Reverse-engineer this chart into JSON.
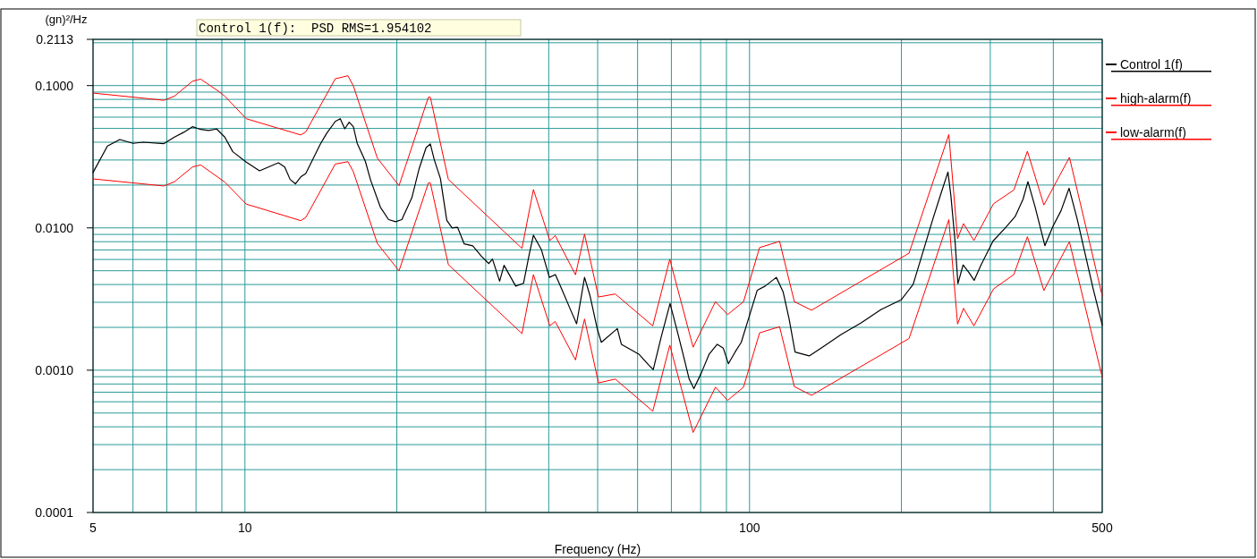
{
  "chart_data": {
    "type": "line",
    "xlabel": "Frequency (Hz)",
    "ylabel": "(gn)²/Hz",
    "annotations": [
      "Control 1(f):  PSD RMS=1.954102"
    ],
    "log": "xy",
    "grid": true,
    "legend": "right",
    "xlim": [
      5,
      500
    ],
    "ylim": [
      0.0001,
      0.2113
    ],
    "xticks": [
      5,
      {
        "value": 6,
        "label": null
      },
      {
        "value": 7,
        "label": null
      },
      {
        "value": 8,
        "label": null
      },
      {
        "value": 9,
        "label": null
      },
      10,
      {
        "value": 20,
        "label": null
      },
      {
        "value": 30,
        "label": null
      },
      {
        "value": 40,
        "label": null
      },
      {
        "value": 50,
        "label": null
      },
      {
        "value": 60,
        "label": null
      },
      {
        "value": 70,
        "label": null
      },
      {
        "value": 80,
        "label": null
      },
      {
        "value": 90,
        "label": null
      },
      100,
      {
        "value": 200,
        "label": null
      },
      {
        "value": 300,
        "label": null
      },
      {
        "value": 400,
        "label": null
      },
      500
    ],
    "yticks": [
      {
        "value": 0.0001,
        "label": "0.0001"
      },
      {
        "value": 0.0002,
        "label": null
      },
      {
        "value": 0.0003,
        "label": null
      },
      {
        "value": 0.0004,
        "label": null
      },
      {
        "value": 0.0005,
        "label": null
      },
      {
        "value": 0.0006,
        "label": null
      },
      {
        "value": 0.0007,
        "label": null
      },
      {
        "value": 0.0008,
        "label": null
      },
      {
        "value": 0.0009,
        "label": null
      },
      {
        "value": 0.001,
        "label": "0.0010"
      },
      {
        "value": 0.002,
        "label": null
      },
      {
        "value": 0.003,
        "label": null
      },
      {
        "value": 0.004,
        "label": null
      },
      {
        "value": 0.005,
        "label": null
      },
      {
        "value": 0.006,
        "label": null
      },
      {
        "value": 0.007,
        "label": null
      },
      {
        "value": 0.008,
        "label": null
      },
      {
        "value": 0.009,
        "label": null
      },
      {
        "value": 0.01,
        "label": "0.0100"
      },
      {
        "value": 0.02,
        "label": null
      },
      {
        "value": 0.03,
        "label": null
      },
      {
        "value": 0.04,
        "label": null
      },
      {
        "value": 0.05,
        "label": null
      },
      {
        "value": 0.06,
        "label": null
      },
      {
        "value": 0.07,
        "label": null
      },
      {
        "value": 0.08,
        "label": null
      },
      {
        "value": 0.09,
        "label": null
      },
      {
        "value": 0.1,
        "label": "0.1000"
      },
      {
        "value": 0.2,
        "label": null
      },
      {
        "value": 0.2113,
        "label": "0.2113"
      }
    ],
    "series": [
      {
        "name": "Control 1(f)",
        "color": "#000000",
        "x": [
          5,
          5.34,
          5.65,
          6,
          6.29,
          6.91,
          7.25,
          7.55,
          7.87,
          8.17,
          8.47,
          8.79,
          9.12,
          9.46,
          10.06,
          10.69,
          11.65,
          11.99,
          12.29,
          12.59,
          12.9,
          13.2,
          14.11,
          14.51,
          15.1,
          15.45,
          15.77,
          16.09,
          16.4,
          16.69,
          17.32,
          17.75,
          18.55,
          19.26,
          19.9,
          20.46,
          21.42,
          22.13,
          22.86,
          23.3,
          23.72,
          24.4,
          25.12,
          25.74,
          26.38,
          27.19,
          28.28,
          29.46,
          30.44,
          30.94,
          31.97,
          32.62,
          34.4,
          35.66,
          36.58,
          37.3,
          38.67,
          40.12,
          41.23,
          42.37,
          44.32,
          45.43,
          47.1,
          48.3,
          49.9,
          50.85,
          54.7,
          55.72,
          60.45,
          63.24,
          64.45,
          66.87,
          69.58,
          71.88,
          73.86,
          75.93,
          77.57,
          80.2,
          83.2,
          86.3,
          88.7,
          90.8,
          93.6,
          96.3,
          99.5,
          103.6,
          107.4,
          113,
          116.6,
          119.8,
          123.1,
          131.3,
          138.6,
          151.9,
          166.4,
          182.3,
          199.7,
          211,
          222.6,
          231,
          239.6,
          247.3,
          250.6,
          255.5,
          258.8,
          265,
          272.3,
          278.7,
          287.6,
          303.8,
          320.9,
          336,
          348.4,
          356.2,
          368.1,
          384.9,
          399.3,
          414.3,
          429.8,
          445.8,
          462.3,
          479.4,
          500
        ],
        "values": [
          0.0245,
          0.0376,
          0.0418,
          0.0393,
          0.04,
          0.0391,
          0.0435,
          0.0468,
          0.0514,
          0.0492,
          0.0484,
          0.0495,
          0.0435,
          0.0343,
          0.029,
          0.0252,
          0.0287,
          0.0268,
          0.0219,
          0.0204,
          0.0228,
          0.0241,
          0.0389,
          0.046,
          0.056,
          0.0585,
          0.0497,
          0.0553,
          0.0514,
          0.0393,
          0.0294,
          0.0216,
          0.014,
          0.01144,
          0.01106,
          0.01144,
          0.0163,
          0.0259,
          0.0367,
          0.0389,
          0.0302,
          0.0222,
          0.01131,
          0.01,
          0.01011,
          0.00773,
          0.00747,
          0.00628,
          0.00561,
          0.00604,
          0.00422,
          0.00546,
          0.0039,
          0.00408,
          0.00646,
          0.00889,
          0.00705,
          0.00449,
          0.0047,
          0.00377,
          0.00259,
          0.00212,
          0.00449,
          0.00333,
          0.00196,
          0.00157,
          0.00196,
          0.00152,
          0.00129,
          0.00108,
          0.00101,
          0.00173,
          0.00294,
          0.00189,
          0.00129,
          0.000866,
          0.000741,
          0.000951,
          0.0013,
          0.00152,
          0.00143,
          0.00111,
          0.00134,
          0.00157,
          0.00229,
          0.00365,
          0.0039,
          0.00449,
          0.00354,
          0.00229,
          0.00134,
          0.00126,
          0.00143,
          0.00178,
          0.00215,
          0.00267,
          0.00312,
          0.00401,
          0.0075,
          0.01164,
          0.01748,
          0.0247,
          0.01694,
          0.00799,
          0.00406,
          0.00549,
          0.00484,
          0.00428,
          0.00549,
          0.00808,
          0.00994,
          0.012,
          0.0159,
          0.0211,
          0.01404,
          0.0075,
          0.01027,
          0.0132,
          0.019,
          0.01164,
          0.00662,
          0.00377,
          0.00208
        ]
      },
      {
        "name": "high-alarm(f)",
        "color": "#ff0000",
        "x": [
          5,
          6.91,
          7.25,
          7.87,
          8.17,
          8.86,
          9.12,
          10.06,
          12.9,
          13.2,
          15.1,
          16.0,
          16.4,
          18.3,
          20.2,
          23.1,
          23.3,
          25.3,
          35.4,
          37.3,
          40.2,
          41.2,
          45.2,
          47.1,
          50.2,
          54.2,
          64.3,
          69.5,
          77.3,
          85.6,
          90.5,
          97.3,
          104.7,
          114.7,
          122.7,
          132.7,
          207.1,
          248.3,
          258.4,
          265.5,
          278.4,
          304.4,
          334.1,
          355.4,
          383.1,
          430.5,
          500
        ],
        "values": [
          0.0886,
          0.0788,
          0.0843,
          0.1073,
          0.111,
          0.0914,
          0.0843,
          0.0585,
          0.045,
          0.0473,
          0.1116,
          0.1173,
          0.0995,
          0.0309,
          0.0198,
          0.0829,
          0.0829,
          0.0219,
          0.00718,
          0.0186,
          0.00815,
          0.00884,
          0.00468,
          0.00904,
          0.00327,
          0.00343,
          0.00205,
          0.00602,
          0.00145,
          0.00303,
          0.00246,
          0.00303,
          0.00727,
          0.00804,
          0.00303,
          0.00264,
          0.00664,
          0.0453,
          0.00841,
          0.01073,
          0.00815,
          0.01477,
          0.01847,
          0.0346,
          0.01448,
          0.0313,
          0.00333
        ]
      },
      {
        "name": "low-alarm(f)",
        "color": "#ff0000",
        "x": [
          5,
          6.91,
          7.25,
          7.87,
          8.17,
          9.12,
          10.06,
          12.9,
          13.2,
          15.1,
          16.0,
          16.4,
          18.3,
          20.2,
          23.1,
          23.3,
          25.3,
          35.4,
          37.3,
          40.2,
          41.2,
          45.2,
          47.1,
          50.2,
          54.2,
          64.3,
          69.5,
          77.3,
          85.6,
          90.5,
          97.3,
          104.7,
          114.7,
          122.7,
          132.7,
          207.1,
          248.3,
          258.4,
          265.5,
          278.4,
          304.4,
          334.1,
          355.4,
          383.1,
          430.5,
          500
        ],
        "values": [
          0.0221,
          0.0197,
          0.0211,
          0.0268,
          0.0277,
          0.021,
          0.0147,
          0.01125,
          0.01183,
          0.0281,
          0.0292,
          0.0248,
          0.00777,
          0.00499,
          0.0207,
          0.0207,
          0.00552,
          0.00181,
          0.0047,
          0.00205,
          0.0022,
          0.00118,
          0.00229,
          0.000814,
          0.000866,
          0.000515,
          0.0015,
          0.000365,
          0.00076,
          0.000614,
          0.00076,
          0.00183,
          0.00202,
          0.000766,
          0.000666,
          0.00167,
          0.01143,
          0.00211,
          0.00272,
          0.00205,
          0.00372,
          0.0047,
          0.00867,
          0.00363,
          0.00799,
          0.000894
        ]
      }
    ]
  }
}
